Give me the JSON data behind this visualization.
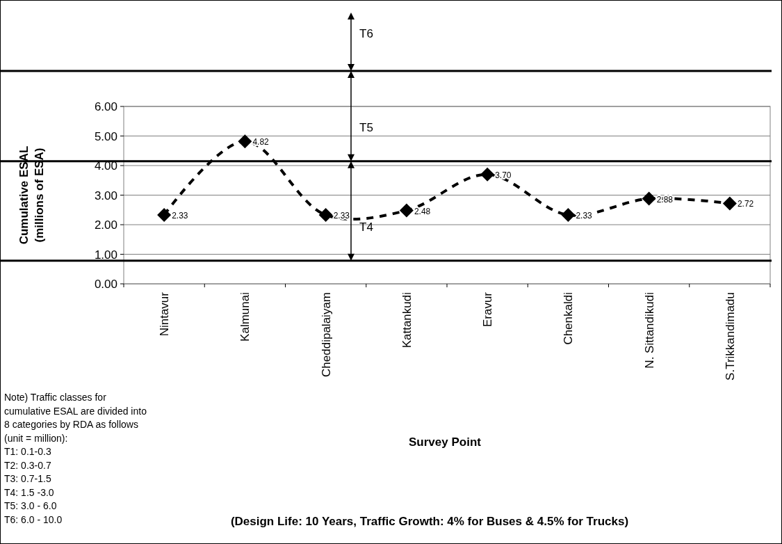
{
  "chart_data": {
    "type": "line",
    "xlabel": "Survey Point",
    "ylabel": "Cumulative ESAL\n(millions of ESA)",
    "categories": [
      "Nintavur",
      "Kalmunai",
      "Cheddipalaiyam",
      "Kattankudi",
      "Eravur",
      "Chenkaldi",
      "N. Sittandikudi",
      "S.Trikkandimadu"
    ],
    "series": [
      {
        "color": "#000000",
        "values": [
          2.33,
          4.82,
          2.33,
          2.48,
          3.7,
          2.33,
          2.88,
          2.72
        ],
        "value_labels": [
          "2.33",
          "4.82",
          "2.33",
          "2.48",
          "3.70",
          "2.33",
          "2.88",
          "2.72"
        ]
      }
    ],
    "ylim": [
      0,
      6
    ],
    "yticks": [
      {
        "value": 0,
        "label": "0.00"
      },
      {
        "value": 1,
        "label": "1.00"
      },
      {
        "value": 2,
        "label": "2.00"
      },
      {
        "value": 3,
        "label": "3.00"
      },
      {
        "value": 4,
        "label": "4.00"
      },
      {
        "value": 5,
        "label": "5.00"
      },
      {
        "value": 6,
        "label": "6.00"
      }
    ],
    "grid": "y",
    "marker": "diamond",
    "line_style": "dashed",
    "ref_lines": [
      {
        "axis": "y",
        "value": 0.78,
        "label": "T4",
        "color": "#000000"
      },
      {
        "axis": "y",
        "value": 4.15,
        "label": "T5",
        "color": "#000000"
      },
      {
        "axis": "y",
        "value": 7.2,
        "label": "T6",
        "color": "#000000"
      }
    ],
    "annotations": [
      "Note) Traffic classes for",
      "cumulative ESAL are divided into",
      "8 categories by RDA as follows",
      "(unit = million):",
      "T1: 0.1-0.3",
      "T2: 0.3-0.7",
      "T3: 0.7-1.5",
      "T4: 1.5 -3.0",
      "T5: 3.0 - 6.0",
      "T6: 6.0 - 10.0",
      "(Design Life: 10 Years, Traffic Growth: 4% for Buses & 4.5% for Trucks)"
    ]
  }
}
